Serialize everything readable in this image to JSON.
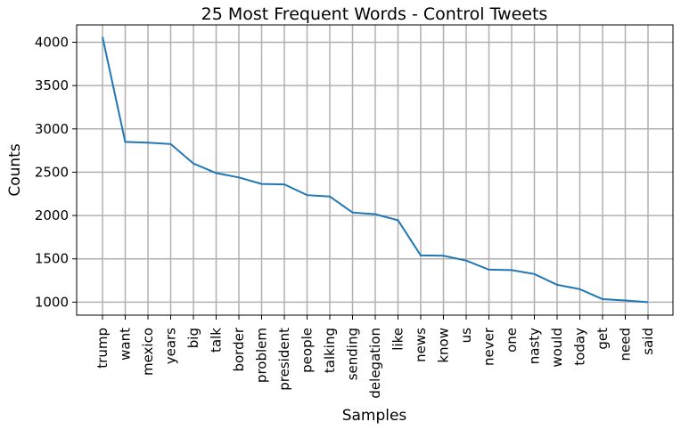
{
  "chart_data": {
    "type": "line",
    "title": "25 Most Frequent Words - Control Tweets",
    "xlabel": "Samples",
    "ylabel": "Counts",
    "categories": [
      "trump",
      "want",
      "mexico",
      "years",
      "big",
      "talk",
      "border",
      "problem",
      "president",
      "people",
      "talking",
      "sending",
      "delegation",
      "like",
      "news",
      "know",
      "us",
      "never",
      "one",
      "nasty",
      "would",
      "today",
      "get",
      "need",
      "said"
    ],
    "series": [
      {
        "values": [
          4060,
          2850,
          2840,
          2825,
          2600,
          2490,
          2440,
          2365,
          2360,
          2235,
          2220,
          2035,
          2015,
          1945,
          1540,
          1535,
          1480,
          1375,
          1370,
          1325,
          1200,
          1150,
          1035,
          1020,
          1000
        ]
      }
    ],
    "yticks": [
      1000,
      1500,
      2000,
      2500,
      3000,
      3500,
      4000
    ],
    "ylim": [
      850,
      4200
    ],
    "grid": true,
    "legend": "none",
    "line_color": "#1f77b4"
  }
}
